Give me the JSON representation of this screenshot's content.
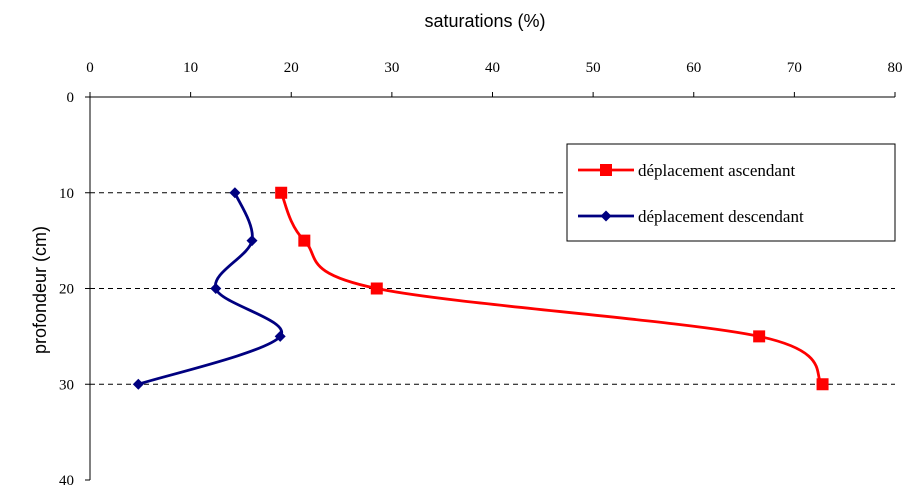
{
  "chart_data": {
    "type": "line",
    "xlabel": "saturations (%)",
    "ylabel": "profondeur (cm)",
    "xlim": [
      0,
      80
    ],
    "ylim": [
      0,
      40
    ],
    "x_ticks": [
      0,
      10,
      20,
      30,
      40,
      50,
      60,
      70,
      80
    ],
    "y_ticks": [
      0,
      10,
      20,
      30,
      40
    ],
    "x_axis_position": "top",
    "y_axis_inverted": true,
    "grid": "horizontal dashed at y = 10, 20, 30",
    "legend_position": "top-right",
    "series": [
      {
        "name": "déplacement ascendant",
        "color": "#ff0000",
        "marker": "square",
        "points": [
          {
            "x": 19,
            "y": 10
          },
          {
            "x": 21.3,
            "y": 15
          },
          {
            "x": 28.5,
            "y": 20
          },
          {
            "x": 66.5,
            "y": 25
          },
          {
            "x": 72.8,
            "y": 30
          }
        ]
      },
      {
        "name": "déplacement descendant",
        "color": "#000080",
        "marker": "diamond",
        "points": [
          {
            "x": 14.4,
            "y": 10
          },
          {
            "x": 16.1,
            "y": 15
          },
          {
            "x": 12.5,
            "y": 20
          },
          {
            "x": 18.9,
            "y": 25
          },
          {
            "x": 4.8,
            "y": 30
          }
        ]
      }
    ]
  }
}
